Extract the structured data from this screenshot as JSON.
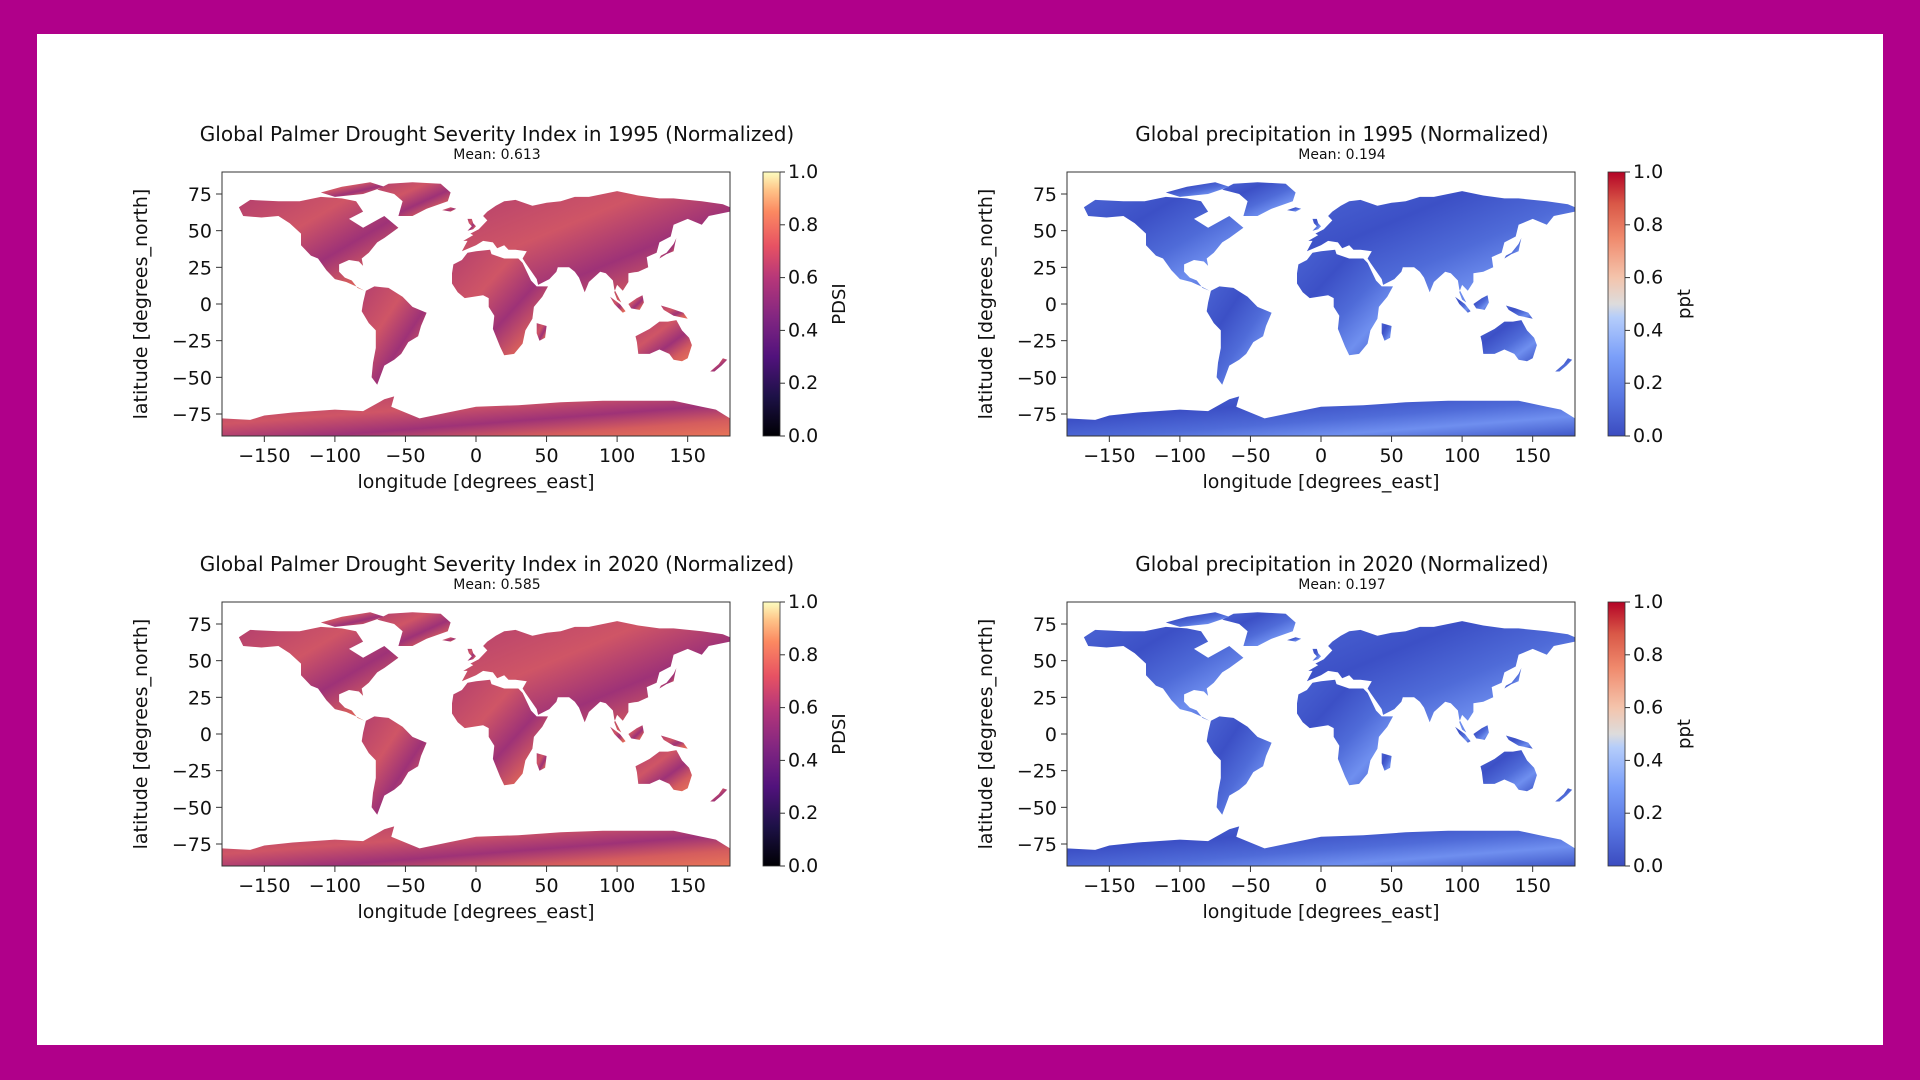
{
  "chart_data": [
    {
      "type": "heatmap",
      "title": "Global Palmer Drought Severity Index in 1995 (Normalized)",
      "subtitle": "Mean: 0.613",
      "mean": 0.613,
      "xlabel": "longitude [degrees_east]",
      "ylabel": "latitude [degrees_north]",
      "xlim": [
        -180,
        180
      ],
      "ylim": [
        -90,
        90
      ],
      "xticks": [
        -150,
        -100,
        -50,
        0,
        50,
        100,
        150
      ],
      "yticks": [
        75,
        50,
        25,
        0,
        -25,
        -50,
        -75
      ],
      "colorbar": {
        "label": "PDSI",
        "range": [
          0.0,
          1.0
        ],
        "ticks": [
          "1.0",
          "0.8",
          "0.6",
          "0.4",
          "0.2",
          "0.0"
        ],
        "colormap": "magma"
      }
    },
    {
      "type": "heatmap",
      "title": "Global precipitation in 1995 (Normalized)",
      "subtitle": "Mean: 0.194",
      "mean": 0.194,
      "xlabel": "longitude [degrees_east]",
      "ylabel": "latitude [degrees_north]",
      "xlim": [
        -180,
        180
      ],
      "ylim": [
        -90,
        90
      ],
      "xticks": [
        -150,
        -100,
        -50,
        0,
        50,
        100,
        150
      ],
      "yticks": [
        75,
        50,
        25,
        0,
        -25,
        -50,
        -75
      ],
      "colorbar": {
        "label": "ppt",
        "range": [
          0.0,
          1.0
        ],
        "ticks": [
          "1.0",
          "0.8",
          "0.6",
          "0.4",
          "0.2",
          "0.0"
        ],
        "colormap": "coolwarm"
      }
    },
    {
      "type": "heatmap",
      "title": "Global Palmer Drought Severity Index in 2020 (Normalized)",
      "subtitle": "Mean: 0.585",
      "mean": 0.585,
      "xlabel": "longitude [degrees_east]",
      "ylabel": "latitude [degrees_north]",
      "xlim": [
        -180,
        180
      ],
      "ylim": [
        -90,
        90
      ],
      "xticks": [
        -150,
        -100,
        -50,
        0,
        50,
        100,
        150
      ],
      "yticks": [
        75,
        50,
        25,
        0,
        -25,
        -50,
        -75
      ],
      "colorbar": {
        "label": "PDSI",
        "range": [
          0.0,
          1.0
        ],
        "ticks": [
          "1.0",
          "0.8",
          "0.6",
          "0.4",
          "0.2",
          "0.0"
        ],
        "colormap": "magma"
      }
    },
    {
      "type": "heatmap",
      "title": "Global precipitation in 2020 (Normalized)",
      "subtitle": "Mean: 0.197",
      "mean": 0.197,
      "xlabel": "longitude [degrees_east]",
      "ylabel": "latitude [degrees_north]",
      "xlim": [
        -180,
        180
      ],
      "ylim": [
        -90,
        90
      ],
      "xticks": [
        -150,
        -100,
        -50,
        0,
        50,
        100,
        150
      ],
      "yticks": [
        75,
        50,
        25,
        0,
        -25,
        -50,
        -75
      ],
      "colorbar": {
        "label": "ppt",
        "range": [
          0.0,
          1.0
        ],
        "ticks": [
          "1.0",
          "0.8",
          "0.6",
          "0.4",
          "0.2",
          "0.0"
        ],
        "colormap": "coolwarm"
      }
    }
  ],
  "colors": {
    "frame_border": "#b0008a",
    "background": "#ffffff"
  }
}
